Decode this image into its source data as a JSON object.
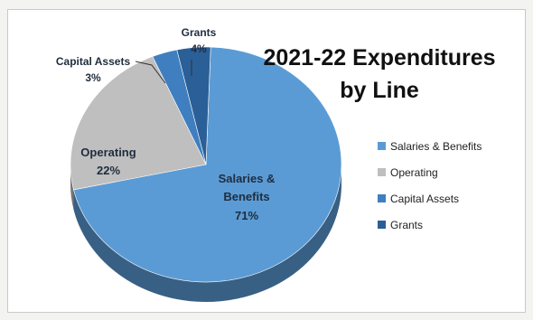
{
  "chart_data": {
    "type": "pie",
    "title": "2021-22 Expenditures by Line",
    "title_lines": [
      "2021-22 Expenditures",
      "by Line"
    ],
    "slices": [
      {
        "label": "Salaries & Benefits",
        "label_lines": [
          "Salaries &",
          "Benefits"
        ],
        "percent_label": "71%",
        "value": 71,
        "color": "#5b9bd5"
      },
      {
        "label": "Operating",
        "label_lines": [
          "Operating"
        ],
        "percent_label": "22%",
        "value": 22,
        "color": "#bfbfbf"
      },
      {
        "label": "Capital Assets",
        "label_lines": [
          "Capital Assets"
        ],
        "percent_label": "3%",
        "value": 3,
        "color": "#3f7fc0"
      },
      {
        "label": "Grants",
        "label_lines": [
          "Grants"
        ],
        "percent_label": "4%",
        "value": 4,
        "color": "#2b5f97"
      }
    ],
    "legend": {
      "position": "right",
      "items": [
        "Salaries & Benefits",
        "Operating",
        "Capital Assets",
        "Grants"
      ]
    }
  }
}
